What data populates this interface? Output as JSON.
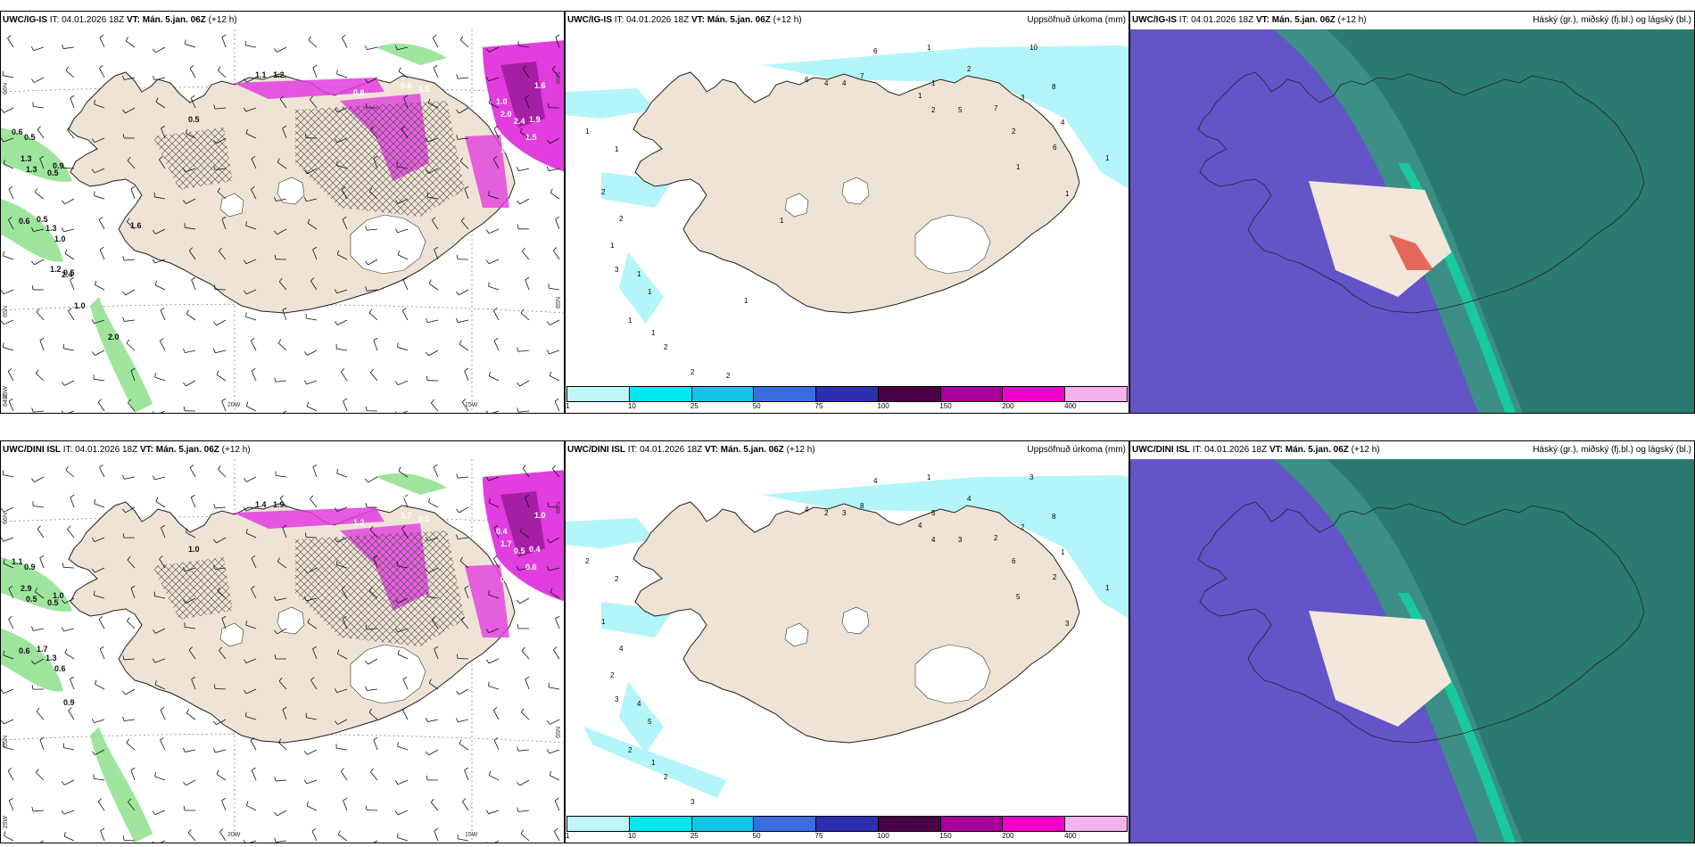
{
  "panels": [
    {
      "id": "p1",
      "source": "UWC/IG-IS",
      "it": "IT: 04.01.2026 18Z",
      "vt_label": "VT:",
      "vt": "Mán. 5.jan. 06Z",
      "lead": "(+12 h)",
      "right_title": "",
      "type": "precip-wind",
      "lat_labels": [
        "66N",
        "65N",
        "64N"
      ],
      "lon_labels": [
        "25W",
        "20W",
        "15W"
      ],
      "right_lat_labels": [
        "66N",
        "65N"
      ],
      "values": [
        "0.6",
        "0.5",
        "1.3",
        "1.1",
        "1.2",
        "0.8",
        "1.6",
        "0.6",
        "0.5",
        "1.0",
        "2.0",
        "2.4",
        "1.9",
        "1.5",
        "1.2",
        "0.6",
        "0.5",
        "1.3",
        "0.5",
        "0.6",
        "0.5",
        "0.9",
        "0.5",
        "1.0",
        "1.3",
        "0.5",
        "1.6",
        "1.2",
        "2.4",
        "1.0",
        "2.0"
      ]
    },
    {
      "id": "p2",
      "source": "UWC/IG-IS",
      "it": "IT: 04.01.2026 18Z",
      "vt_label": "VT:",
      "vt": "Mán. 5.jan. 06Z",
      "lead": "(+12 h)",
      "right_title": "Uppsöfnuð úrkoma (mm)",
      "type": "accum",
      "values": [
        "6",
        "1",
        "10",
        "2",
        "6",
        "4",
        "4",
        "7",
        "1",
        "1",
        "2",
        "5",
        "7",
        "3",
        "8",
        "2",
        "6",
        "1",
        "4",
        "1",
        "1",
        "1",
        "1",
        "2",
        "2",
        "1",
        "3",
        "1",
        "1",
        "1",
        "1",
        "2",
        "2",
        "2",
        "1",
        "1"
      ]
    },
    {
      "id": "p3",
      "source": "UWC/IG-IS",
      "it": "IT: 04.01.2026 18Z",
      "vt_label": "VT:",
      "vt": "Mán. 5.jan. 06Z",
      "lead": "(+12 h)",
      "right_title": "Háský (gr.), miðský (fj.bl.) og lágský (bl.)",
      "type": "cloud"
    },
    {
      "id": "p4",
      "source": "UWC/DINI ISL",
      "it": "IT: 04.01.2026 18Z",
      "vt_label": "VT:",
      "vt": "Mán. 5.jan. 06Z",
      "lead": "(+12 h)",
      "right_title": "",
      "type": "precip-wind",
      "lat_labels": [
        "66N",
        "65N"
      ],
      "lon_labels": [
        "25W",
        "20W",
        "15W"
      ],
      "right_lat_labels": [
        "66N",
        "65N"
      ],
      "values": [
        "1.1",
        "0.9",
        "2.9",
        "1.4",
        "1.9",
        "1.2",
        "1.0",
        "1.7",
        "0.5",
        "0.4",
        "1.7",
        "0.5",
        "0.4",
        "0.8",
        "0.6",
        "0.5",
        "1.2",
        "0.5",
        "0.5",
        "0.6",
        "1.7",
        "1.0",
        "1.0",
        "0.6",
        "1.3",
        "0.9"
      ]
    },
    {
      "id": "p5",
      "source": "UWC/DINI ISL",
      "it": "IT: 04.01.2026 18Z",
      "vt_label": "VT:",
      "vt": "Mán. 5.jan. 06Z",
      "lead": "(+12 h)",
      "right_title": "Uppsöfnuð úrkoma (mm)",
      "type": "accum",
      "values": [
        "4",
        "1",
        "3",
        "4",
        "4",
        "2",
        "3",
        "8",
        "5",
        "4",
        "4",
        "3",
        "2",
        "2",
        "8",
        "6",
        "2",
        "5",
        "1",
        "1",
        "3",
        "2",
        "2",
        "1",
        "4",
        "2",
        "3",
        "4",
        "5",
        "2",
        "1",
        "2",
        "3"
      ]
    },
    {
      "id": "p6",
      "source": "UWC/DINI ISL",
      "it": "IT: 04.01.2026 18Z",
      "vt_label": "VT:",
      "vt": "Mán. 5.jan. 06Z",
      "lead": "(+12 h)",
      "right_title": "Háský (gr.), miðský (fj.bl.) og lágský (bl.)",
      "type": "cloud"
    }
  ],
  "colorbar": {
    "ticks": [
      "1",
      "10",
      "25",
      "50",
      "75",
      "100",
      "150",
      "200",
      "400"
    ],
    "colors": [
      "#bff6f8",
      "#00e8ef",
      "#12c4e6",
      "#3a6ee0",
      "#2b2fb0",
      "#4a0046",
      "#a8009a",
      "#f000c8",
      "#f5b2ef"
    ]
  },
  "colors": {
    "land": "#efe3d5",
    "land_cloud": "#f3e6da",
    "precip_pink": "#e23ddf",
    "precip_purple": "#8b128c",
    "precip_green": "#8ee08c",
    "cyan": "#b3f5f8",
    "cloud_high": "#2a7a70",
    "cloud_mid": "#3b8f86",
    "cloud_low": "#6354c8",
    "cloud_highlight": "#14d3a0"
  }
}
